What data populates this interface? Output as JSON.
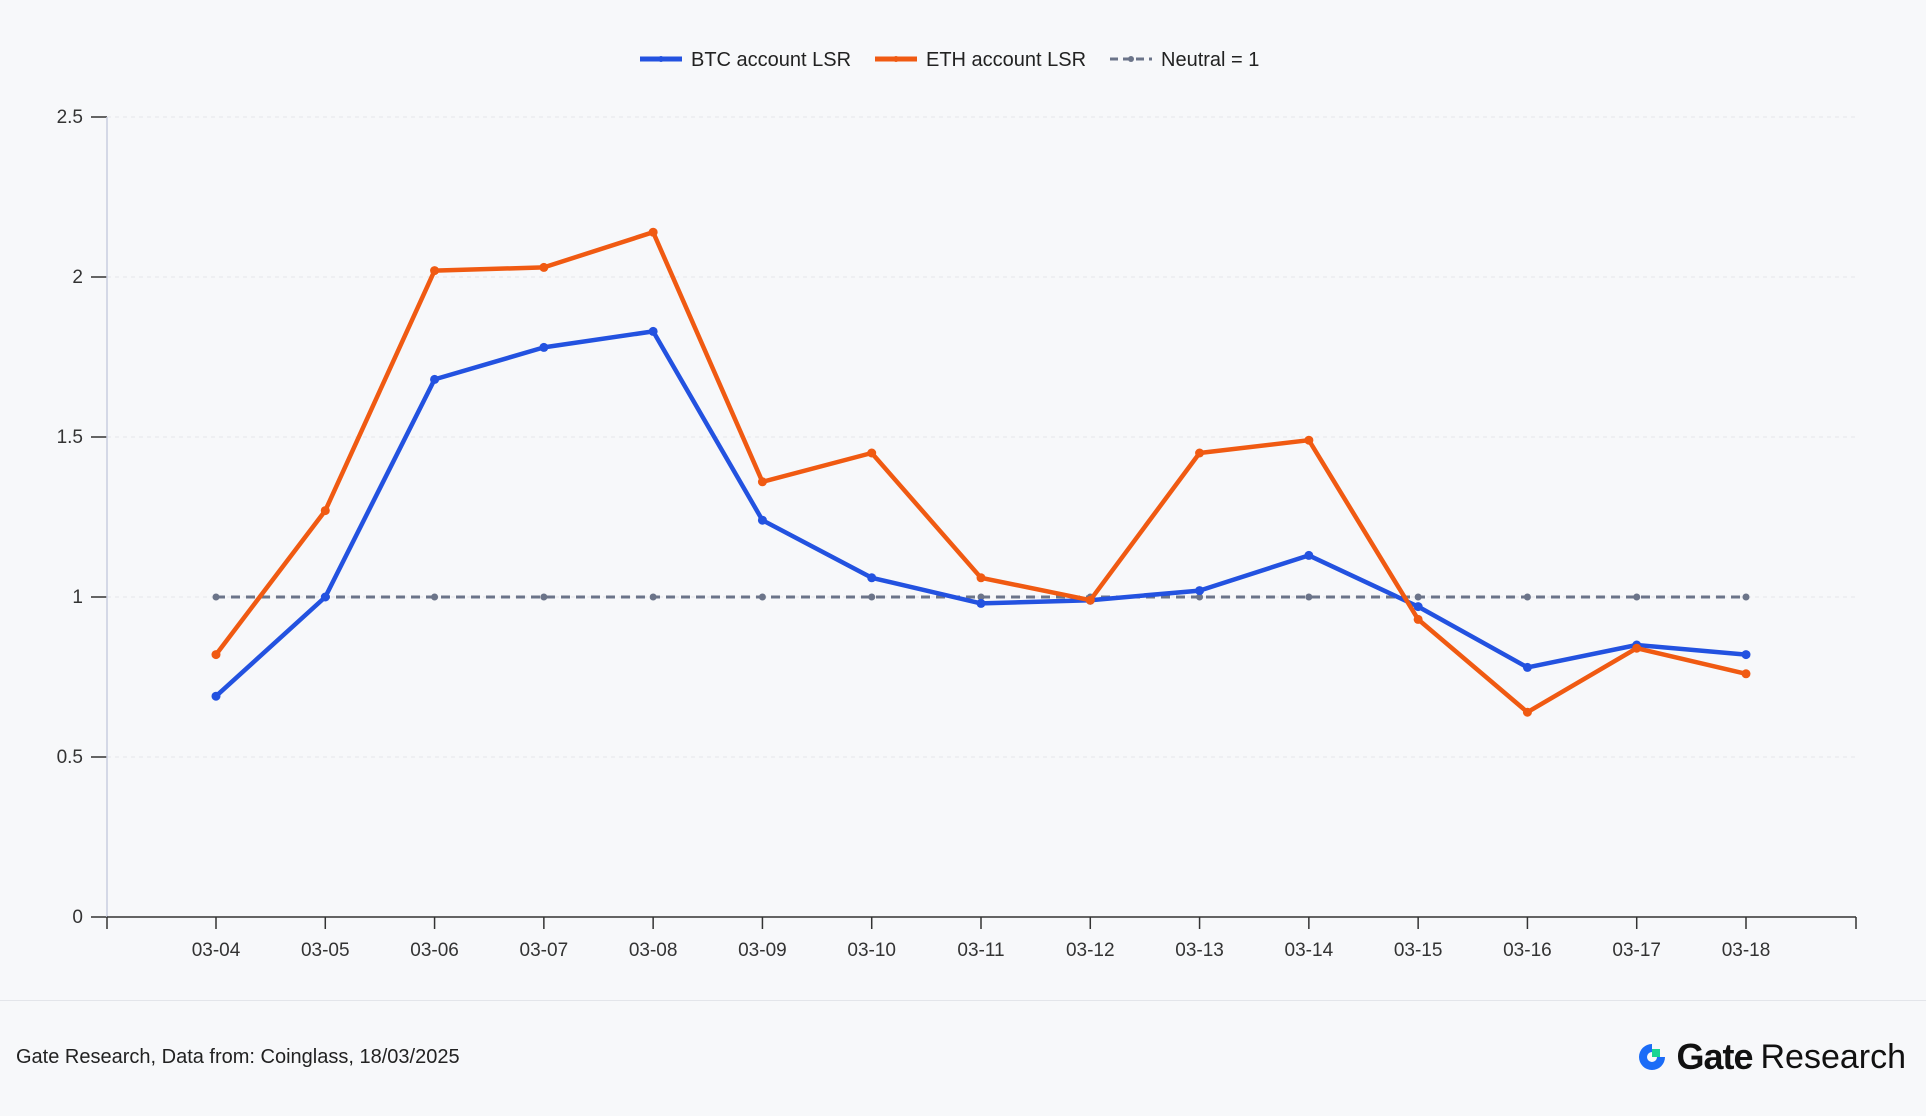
{
  "chart_data": {
    "type": "line",
    "title": "",
    "xlabel": "",
    "ylabel": "",
    "categories": [
      "03-04",
      "03-05",
      "03-06",
      "03-07",
      "03-08",
      "03-09",
      "03-10",
      "03-11",
      "03-12",
      "03-13",
      "03-14",
      "03-15",
      "03-16",
      "03-17",
      "03-18"
    ],
    "ylim": [
      0,
      2.5
    ],
    "yticks": [
      "0",
      "0.5",
      "1",
      "1.5",
      "2",
      "2.5"
    ],
    "grid": true,
    "legend_position": "top-center",
    "series": [
      {
        "name": "BTC account LSR",
        "color": "#2352e0",
        "dash": false,
        "values": [
          0.69,
          1.0,
          1.68,
          1.78,
          1.83,
          1.24,
          1.06,
          0.98,
          0.99,
          1.02,
          1.13,
          0.97,
          0.78,
          0.85,
          0.82
        ]
      },
      {
        "name": "ETH account LSR",
        "color": "#f05a12",
        "dash": false,
        "values": [
          0.82,
          1.27,
          2.02,
          2.03,
          2.14,
          1.36,
          1.45,
          1.06,
          0.99,
          1.45,
          1.49,
          0.93,
          0.64,
          0.84,
          0.76
        ]
      },
      {
        "name": "Neutral = 1",
        "color": "#6b7489",
        "dash": true,
        "values": [
          1,
          1,
          1,
          1,
          1,
          1,
          1,
          1,
          1,
          1,
          1,
          1,
          1,
          1,
          1
        ]
      }
    ]
  },
  "footer": {
    "source": "Gate Research, Data from: Coinglass, 18/03/2025",
    "logo_gate": "Gate",
    "logo_research": "Research"
  }
}
